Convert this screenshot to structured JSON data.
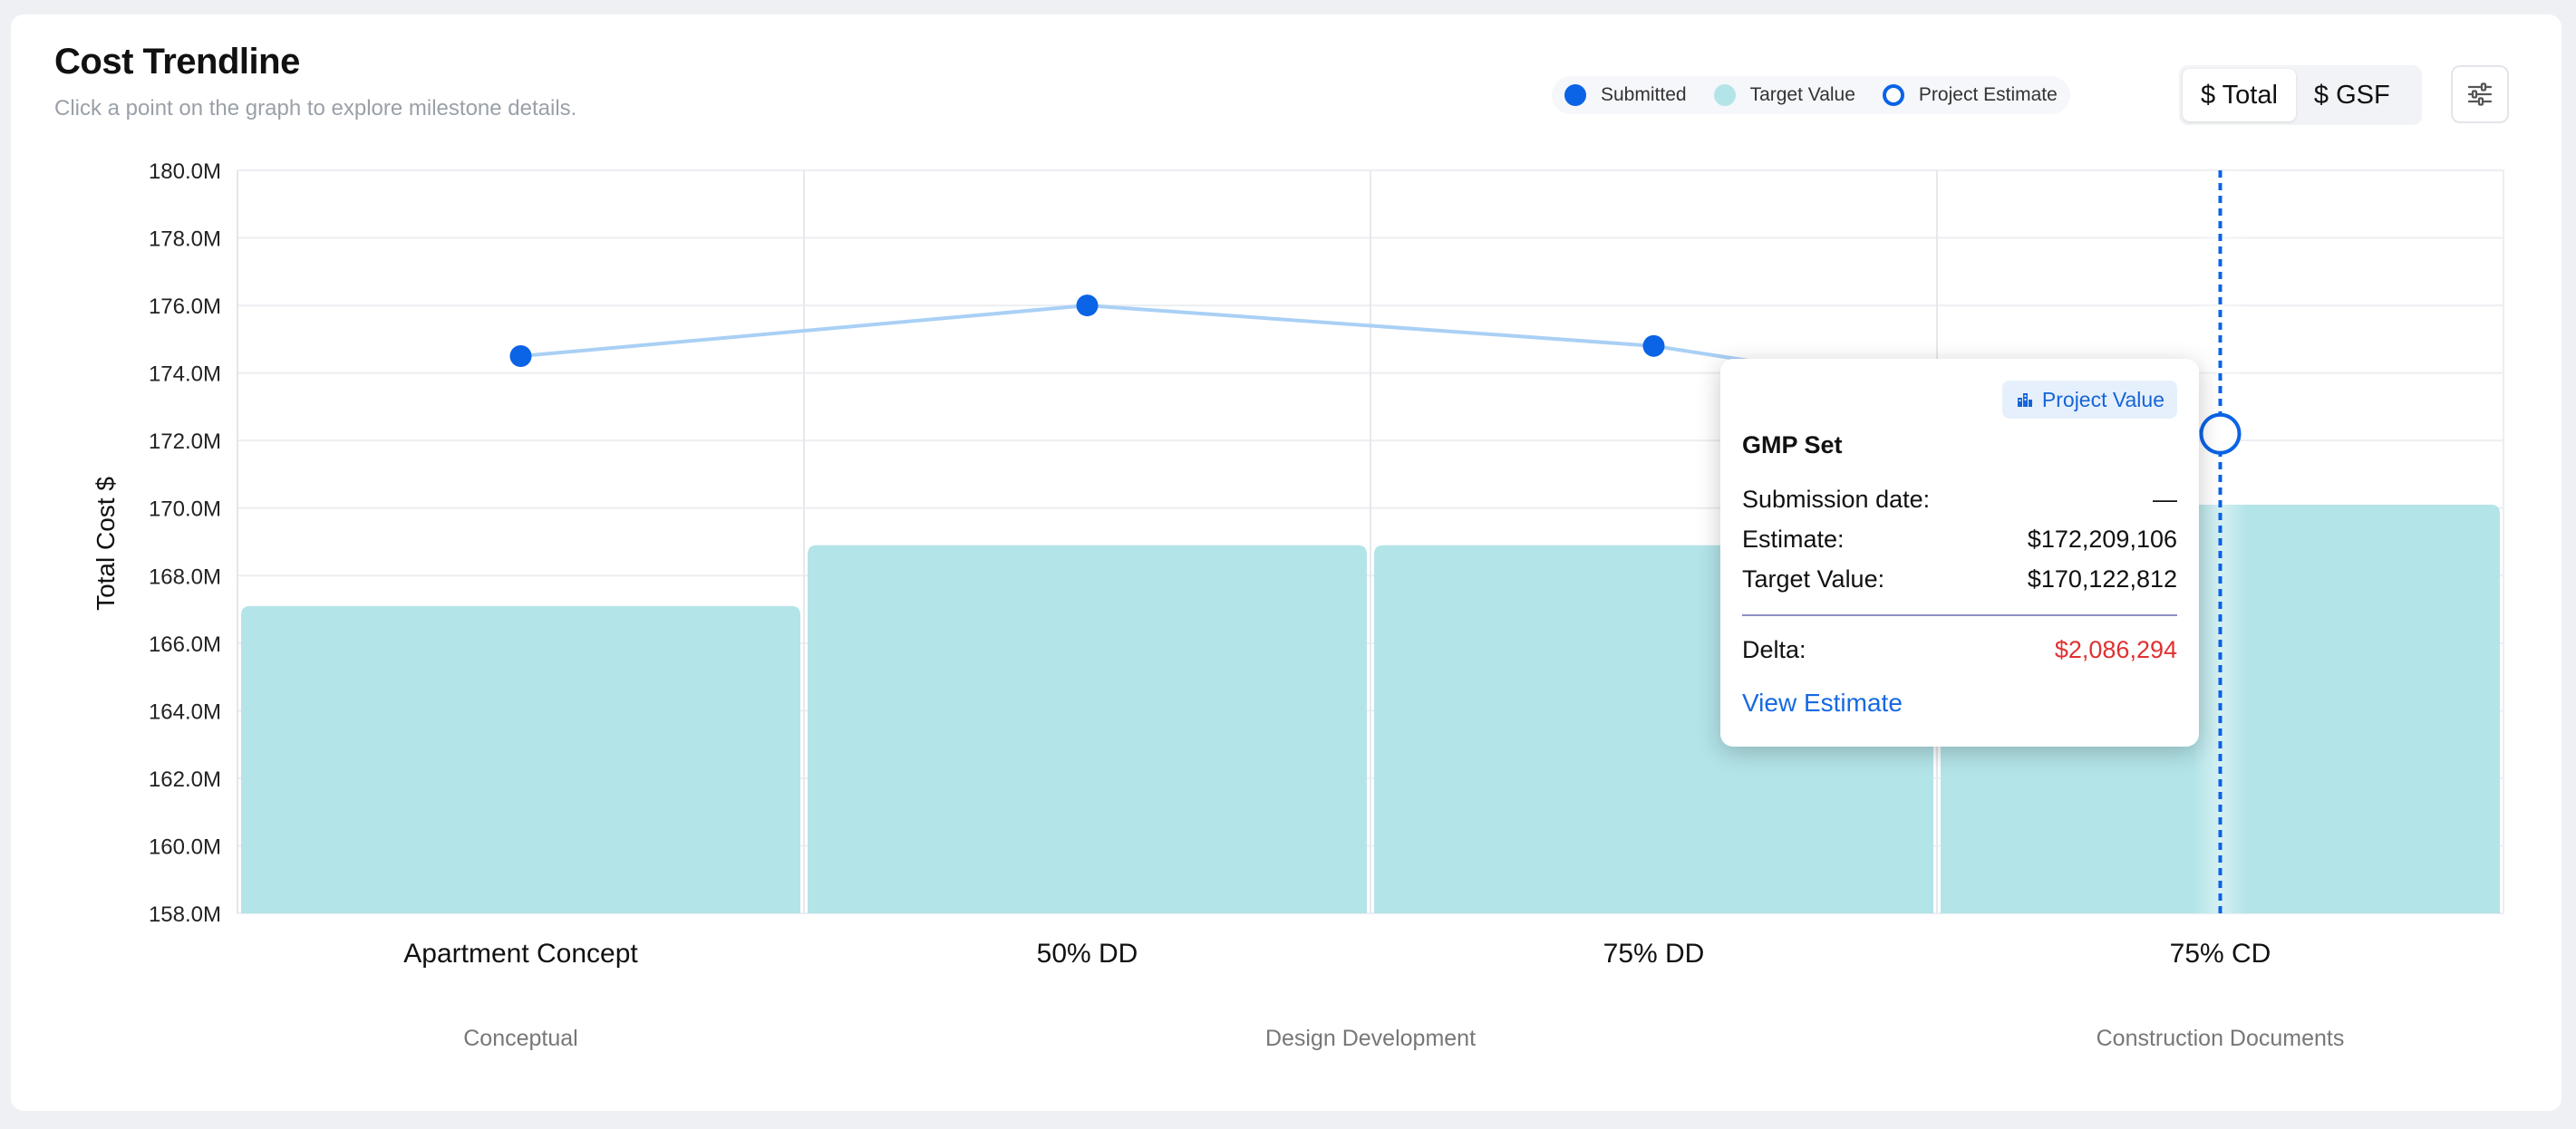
{
  "header": {
    "title": "Cost Trendline",
    "subtitle": "Click a point on the graph to explore milestone details."
  },
  "legend": [
    {
      "label": "Submitted",
      "color": "#0b63e5",
      "style": "filled"
    },
    {
      "label": "Target Value",
      "color": "#b3e4e8",
      "style": "filled"
    },
    {
      "label": "Project Estimate",
      "color": "#0b63e5",
      "style": "ring"
    }
  ],
  "toggle": {
    "options": [
      "$ Total",
      "$ GSF"
    ],
    "active": "$ Total"
  },
  "settings": {
    "icon": "sliders-icon"
  },
  "tooltip": {
    "badge": "Project Value",
    "badge_icon": "building-icon",
    "title": "GMP Set",
    "rows": [
      {
        "label": "Submission date:",
        "value": "—"
      },
      {
        "label": "Estimate:",
        "value": "$172,209,106"
      },
      {
        "label": "Target Value:",
        "value": "$170,122,812"
      }
    ],
    "delta": {
      "label": "Delta:",
      "value": "$2,086,294"
    },
    "link": "View Estimate"
  },
  "chart_data": {
    "type": "bar",
    "ylabel": "Total Cost $",
    "ylim": [
      158.0,
      180.0
    ],
    "ytick_step": 2,
    "ytick_suffix": "M",
    "categories": [
      "Apartment Concept",
      "50% DD",
      "75% DD",
      "75% CD"
    ],
    "phases": [
      {
        "label": "Conceptual",
        "categories": [
          "Apartment Concept"
        ]
      },
      {
        "label": "Design Development",
        "categories": [
          "50% DD",
          "75% DD"
        ]
      },
      {
        "label": "Construction Documents",
        "categories": [
          "75% CD"
        ]
      }
    ],
    "series": [
      {
        "name": "Target Value",
        "type": "bar",
        "color": "#b3e4e8",
        "values": [
          167.1,
          168.9,
          168.9,
          170.1
        ]
      },
      {
        "name": "Submitted",
        "type": "line",
        "color": "#0b63e5",
        "line_color": "#a9d0f5",
        "values": [
          174.5,
          176.0,
          174.8,
          null
        ]
      },
      {
        "name": "Project Estimate",
        "type": "point",
        "color": "#0b63e5",
        "values": [
          null,
          null,
          null,
          172.2
        ]
      }
    ],
    "selected_category": "75% CD",
    "grid": true
  }
}
